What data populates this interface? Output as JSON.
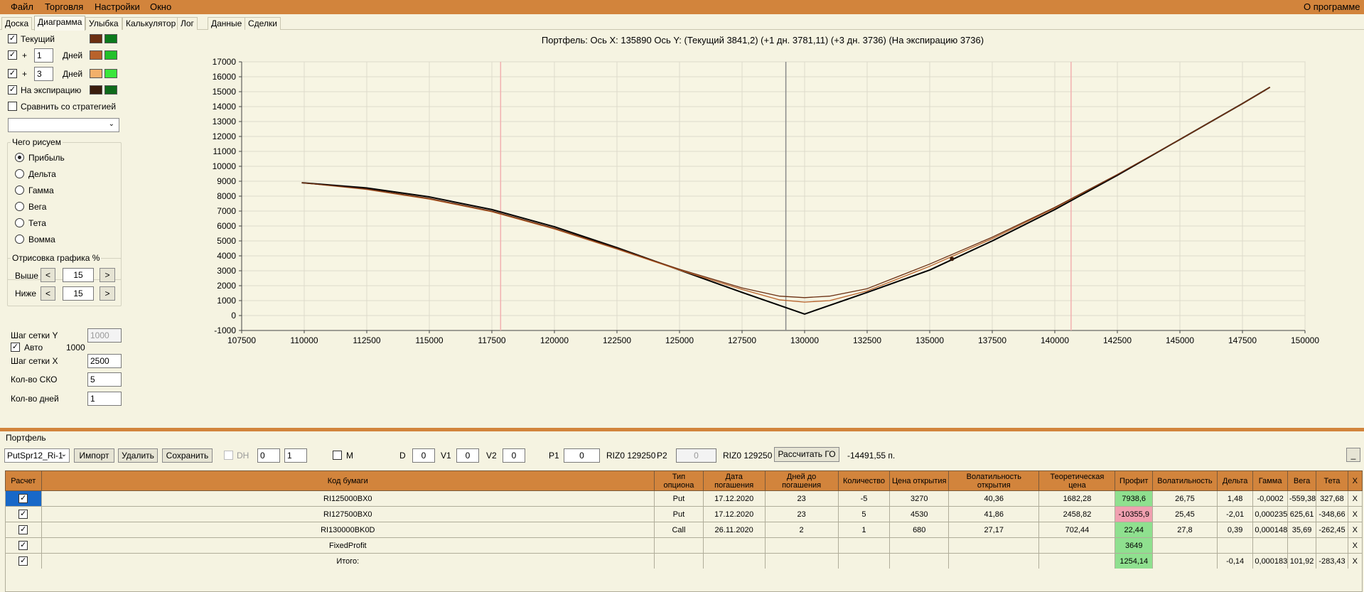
{
  "menu": {
    "file": "Файл",
    "trading": "Торговля",
    "settings": "Настройки",
    "window": "Окно",
    "about": "О программе"
  },
  "tabs": [
    "Доска",
    "Диаграмма",
    "Улыбка",
    "Калькулятор",
    "Лог",
    "Данные",
    "Сделки"
  ],
  "left_panel": {
    "current_label": "Текущий",
    "plus1": "+",
    "days1_value": "1",
    "days_label": "Дней",
    "plus2": "+",
    "days2_value": "3",
    "expiry_label": "На экспирацию",
    "compare_label": "Сравнить со стратегией",
    "what_group_title": "Чего рисуем",
    "radios": [
      "Прибыль",
      "Дельта",
      "Гамма",
      "Вега",
      "Тета",
      "Вомма"
    ],
    "render_group_title": "Отрисовка графика %",
    "above_label": "Выше",
    "above_value": "15",
    "below_label": "Ниже",
    "below_value": "15",
    "prev_symbol": "<",
    "next_symbol": ">",
    "grid_step_y_label": "Шаг сетки Y",
    "grid_step_y_value": "1000",
    "auto_label": "Авто",
    "auto_value": "1000",
    "grid_step_x_label": "Шаг сетки X",
    "grid_step_x_value": "2500",
    "sko_label": "Кол-во СКО",
    "sko_value": "5",
    "days_count_label": "Кол-во дней",
    "days_count_value": "1",
    "colors": {
      "current_a": "#6b2f12",
      "current_b": "#0c7a1c",
      "plus1_a": "#b8622b",
      "plus1_b": "#22c02a",
      "plus3_a": "#f2b06a",
      "plus3_b": "#3ae63a",
      "expiry_a": "#3a1c0c",
      "expiry_b": "#0f6a1a"
    }
  },
  "chart_data": {
    "type": "line",
    "title": "Портфель: Ось X: 135890 Ось Y: (Текущий 3841,2) (+1 дн. 3781,11) (+3 дн. 3736) (На экспирацию 3736)",
    "xlim": [
      107500,
      150000
    ],
    "ylim": [
      -1000,
      17000
    ],
    "x_ticks": [
      107500,
      110000,
      112500,
      115000,
      117500,
      120000,
      122500,
      125000,
      127500,
      130000,
      132500,
      135000,
      137500,
      140000,
      142500,
      145000,
      147500,
      150000
    ],
    "y_ticks": [
      -1000,
      0,
      1000,
      2000,
      3000,
      4000,
      5000,
      6000,
      7000,
      8000,
      9000,
      10000,
      11000,
      12000,
      13000,
      14000,
      15000,
      16000,
      17000
    ],
    "grid": true,
    "vertical_lines": [
      {
        "x": 117850,
        "color": "#f2b0b0"
      },
      {
        "x": 129250,
        "color": "#8a8a8a"
      },
      {
        "x": 140650,
        "color": "#f2b0b0"
      }
    ],
    "marker": {
      "x": 135890,
      "y": 3800
    },
    "series": [
      {
        "color": "#000000",
        "x": [
          109900,
          112500,
          115000,
          117500,
          120000,
          122500,
          125000,
          127500,
          130000,
          132500,
          135000,
          137500,
          140000,
          142500,
          145000,
          147500,
          148600
        ],
        "y": [
          8900,
          8550,
          7950,
          7100,
          5950,
          4550,
          3050,
          1550,
          100,
          1550,
          3050,
          5000,
          7100,
          9400,
          11800,
          14200,
          15300
        ]
      },
      {
        "color": "#b8622b",
        "x": [
          109900,
          112500,
          115000,
          117500,
          120000,
          122500,
          125000,
          127500,
          129000,
          130000,
          131000,
          132500,
          135000,
          137500,
          140000,
          142500,
          145000,
          147500,
          148600
        ],
        "y": [
          8900,
          8450,
          7800,
          6950,
          5800,
          4450,
          3050,
          1750,
          1050,
          900,
          1000,
          1650,
          3300,
          5150,
          7200,
          9450,
          11800,
          14200,
          15300
        ]
      },
      {
        "color": "#6b2f12",
        "x": [
          109900,
          112500,
          115000,
          117500,
          120000,
          122500,
          125000,
          127500,
          129000,
          130000,
          131000,
          132500,
          135000,
          137500,
          140000,
          142500,
          145000,
          147500,
          148600
        ],
        "y": [
          8900,
          8480,
          7850,
          7000,
          5850,
          4500,
          3100,
          1850,
          1300,
          1200,
          1300,
          1800,
          3450,
          5250,
          7250,
          9450,
          11800,
          14200,
          15300
        ]
      }
    ]
  },
  "toolbar": {
    "strategy_select": "PutSpr12_Ri-1",
    "import": "Импорт",
    "delete": "Удалить",
    "save": "Сохранить",
    "dh_label": "DH",
    "spin1": "0",
    "spin2": "1",
    "m_label": "M",
    "d_label": "D",
    "d_value": "0",
    "v1_label": "V1",
    "v1_value": "0",
    "v2_label": "V2",
    "v2_value": "0",
    "p1_label": "P1",
    "p1_value": "0",
    "riz1": "RIZ0 129250",
    "p2_label": "P2",
    "p2_value": "0",
    "riz2": "RIZ0 129250",
    "calc_go": "Рассчитать ГО",
    "go_value": "-14491,55 п.",
    "minimize": "_"
  },
  "portfolio_title": "Портфель",
  "table": {
    "headers": [
      "Расчет",
      "Код бумаги",
      "Тип опциона",
      "Дата погашения",
      "Дней до погашения",
      "Количество",
      "Цена открытия",
      "Волатильность открытия",
      "Теоретическая цена",
      "Профит",
      "Волатильность",
      "Дельта",
      "Гамма",
      "Вега",
      "Тета",
      "X"
    ],
    "rows": [
      [
        "",
        "RI125000BX0",
        "Put",
        "17.12.2020",
        "23",
        "-5",
        "3270",
        "40,36",
        "1682,28",
        "7938,6",
        "26,75",
        "1,48",
        "-0,0002",
        "-559,38",
        "327,68",
        "X"
      ],
      [
        "",
        "RI127500BX0",
        "Put",
        "17.12.2020",
        "23",
        "5",
        "4530",
        "41,86",
        "2458,82",
        "-10355,9",
        "25,45",
        "-2,01",
        "0,000235",
        "625,61",
        "-348,66",
        "X"
      ],
      [
        "",
        "RI130000BK0D",
        "Call",
        "26.11.2020",
        "2",
        "1",
        "680",
        "27,17",
        "702,44",
        "22,44",
        "27,8",
        "0,39",
        "0,000148",
        "35,69",
        "-262,45",
        "X"
      ],
      [
        "",
        "FixedProfit",
        "",
        "",
        "",
        "",
        "",
        "",
        "",
        "3649",
        "",
        "",
        "",
        "",
        "",
        "X"
      ],
      [
        "",
        "Итого:",
        "",
        "",
        "",
        "",
        "",
        "",
        "",
        "1254,14",
        "",
        "-0,14",
        "0,000183",
        "101,92",
        "-283,43",
        "X"
      ]
    ]
  }
}
